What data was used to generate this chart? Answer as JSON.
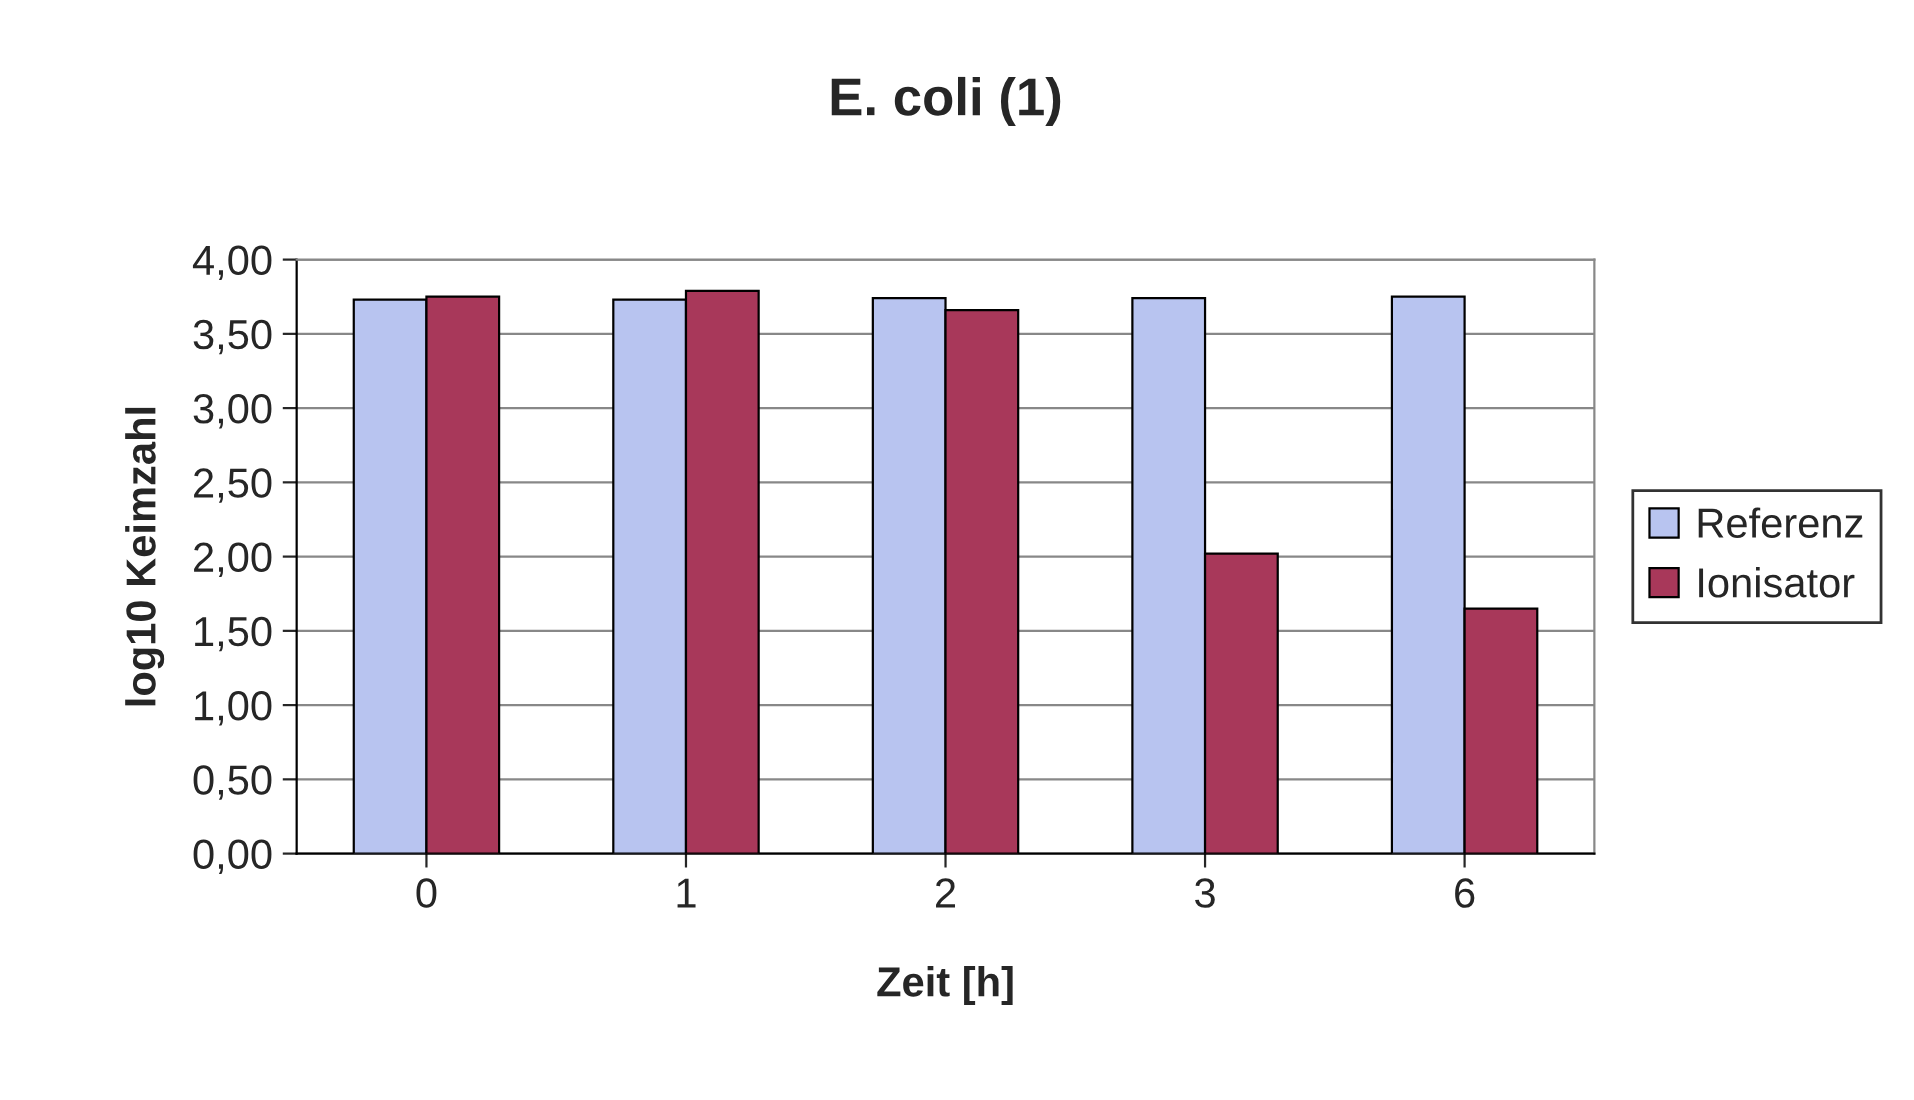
{
  "chart_data": {
    "type": "bar",
    "title": "E. coli (1)",
    "xlabel": "Zeit [h]",
    "ylabel": "log10 Keimzahl",
    "categories": [
      "0",
      "1",
      "2",
      "3",
      "6"
    ],
    "series": [
      {
        "name": "Referenz",
        "color": "#b8c4f0",
        "values": [
          3.73,
          3.73,
          3.74,
          3.74,
          3.75
        ]
      },
      {
        "name": "Ionisator",
        "color": "#a8385a",
        "values": [
          3.75,
          3.79,
          3.66,
          2.02,
          1.65
        ]
      }
    ],
    "ylim": [
      0,
      4
    ],
    "yticks": [
      {
        "value": 0,
        "label": "0,00"
      },
      {
        "value": 0.5,
        "label": "0,50"
      },
      {
        "value": 1,
        "label": "1,00"
      },
      {
        "value": 1.5,
        "label": "1,50"
      },
      {
        "value": 2,
        "label": "2,00"
      },
      {
        "value": 2.5,
        "label": "2,50"
      },
      {
        "value": 3,
        "label": "3,00"
      },
      {
        "value": 3.5,
        "label": "3,50"
      },
      {
        "value": 4,
        "label": "4,00"
      }
    ],
    "grid": "y",
    "legend": "right"
  }
}
